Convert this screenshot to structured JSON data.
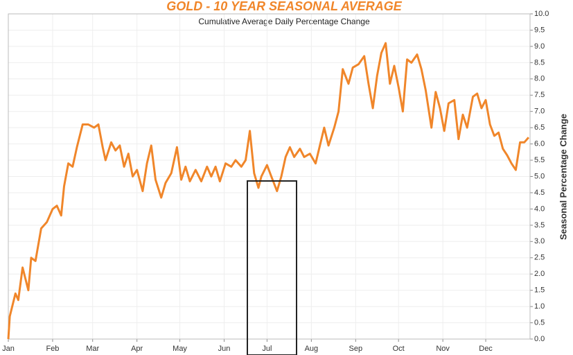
{
  "chart_data": {
    "type": "line",
    "title": "GOLD - 10 YEAR SEASONAL AVERAGE",
    "subtitle": "Cumulative Average Daily Percentage Change",
    "y_label": "Seasonal Percentage Change",
    "y_axis_side": "right",
    "grid": true,
    "x": [
      0,
      1,
      5,
      7,
      10,
      14,
      16,
      19,
      23,
      27,
      31,
      34,
      37,
      39,
      42,
      45,
      48,
      52,
      56,
      60,
      63,
      66,
      68,
      72,
      75,
      78,
      81,
      84,
      87,
      90,
      94,
      97,
      100,
      103,
      107,
      110,
      114,
      118,
      121,
      124,
      127,
      131,
      135,
      139,
      142,
      145,
      148,
      152,
      156,
      159,
      163,
      166,
      169,
      172,
      175,
      177,
      181,
      184,
      188,
      191,
      194,
      197,
      200,
      204,
      207,
      211,
      215,
      218,
      221,
      224,
      228,
      231,
      234,
      238,
      241,
      245,
      249,
      252,
      255,
      258,
      261,
      264,
      267,
      270,
      273,
      276,
      279,
      282,
      286,
      289,
      292,
      296,
      299,
      302,
      305,
      308,
      312,
      315,
      318,
      321,
      325,
      328,
      331,
      334,
      337,
      340,
      343,
      346,
      349,
      352,
      355,
      358,
      361,
      364
    ],
    "series": [
      {
        "name": "Gold",
        "color": "#f0862a",
        "values": [
          0,
          0.7,
          1.4,
          1.2,
          2.2,
          1.5,
          2.5,
          2.4,
          3.4,
          3.6,
          4.0,
          4.1,
          3.8,
          4.7,
          5.4,
          5.3,
          5.9,
          6.6,
          6.6,
          6.5,
          6.6,
          5.9,
          5.5,
          6.05,
          5.8,
          5.95,
          5.3,
          5.7,
          5.0,
          5.2,
          4.55,
          5.4,
          5.95,
          4.9,
          4.35,
          4.8,
          5.1,
          5.9,
          4.9,
          5.3,
          4.85,
          5.2,
          4.85,
          5.3,
          5.0,
          5.3,
          4.85,
          5.4,
          5.3,
          5.5,
          5.3,
          5.5,
          6.4,
          5.1,
          4.65,
          5.0,
          5.35,
          5.0,
          4.55,
          5.0,
          5.6,
          5.9,
          5.6,
          5.85,
          5.6,
          5.7,
          5.4,
          5.95,
          6.5,
          5.95,
          6.5,
          7.0,
          8.3,
          7.85,
          8.35,
          8.45,
          8.7,
          7.85,
          7.1,
          8.1,
          8.8,
          9.1,
          7.85,
          8.4,
          7.75,
          7.0,
          8.6,
          8.5,
          8.75,
          8.3,
          7.65,
          6.5,
          7.6,
          7.1,
          6.4,
          7.25,
          7.35,
          6.15,
          6.9,
          6.5,
          7.45,
          7.55,
          7.1,
          7.35,
          6.6,
          6.25,
          6.35,
          5.85,
          5.65,
          5.4,
          5.2,
          6.05,
          6.05,
          6.2
        ]
      }
    ],
    "xlim": [
      0,
      365
    ],
    "xticks": [
      {
        "value": 0,
        "label": "Jan"
      },
      {
        "value": 31,
        "label": "Feb"
      },
      {
        "value": 59,
        "label": "Mar"
      },
      {
        "value": 90,
        "label": "Apr"
      },
      {
        "value": 120,
        "label": "May"
      },
      {
        "value": 151,
        "label": "Jun"
      },
      {
        "value": 181,
        "label": "Jul"
      },
      {
        "value": 212,
        "label": "Aug"
      },
      {
        "value": 243,
        "label": "Sep"
      },
      {
        "value": 273,
        "label": "Oct"
      },
      {
        "value": 304,
        "label": "Nov"
      },
      {
        "value": 334,
        "label": "Dec"
      }
    ],
    "ylim": [
      0,
      10
    ],
    "yticks": [
      {
        "value": 0,
        "label": "0.0"
      },
      0.5,
      {
        "value": 1,
        "label": "1.0"
      },
      1.5,
      {
        "value": 2,
        "label": "2.0"
      },
      2.5,
      {
        "value": 3,
        "label": "3.0"
      },
      3.5,
      {
        "value": 4,
        "label": "4.0"
      },
      4.5,
      {
        "value": 5,
        "label": "5.0"
      },
      5.5,
      {
        "value": 6,
        "label": "6.0"
      },
      6.5,
      {
        "value": 7,
        "label": "7.0"
      },
      7.5,
      {
        "value": 8,
        "label": "8.0"
      },
      8.5,
      {
        "value": 9,
        "label": "9.0"
      },
      9.5,
      {
        "value": 10,
        "label": "10.0"
      }
    ]
  }
}
